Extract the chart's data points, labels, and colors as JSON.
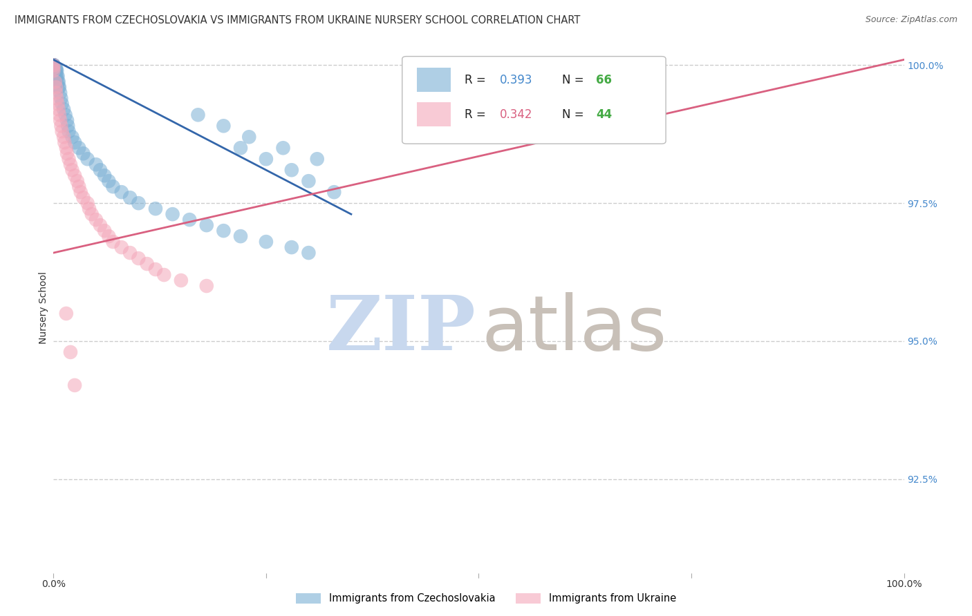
{
  "title": "IMMIGRANTS FROM CZECHOSLOVAKIA VS IMMIGRANTS FROM UKRAINE NURSERY SCHOOL CORRELATION CHART",
  "source": "Source: ZipAtlas.com",
  "ylabel": "Nursery School",
  "legend_label_blue": "Immigrants from Czechoslovakia",
  "legend_label_pink": "Immigrants from Ukraine",
  "blue_color": "#7BAFD4",
  "pink_color": "#F4A7B9",
  "blue_line_color": "#3366AA",
  "pink_line_color": "#D96080",
  "blue_r_text": "R = ",
  "blue_r_val": "0.393",
  "blue_n_text": "N = ",
  "blue_n_val": "66",
  "pink_r_text": "R = ",
  "pink_r_val": "0.342",
  "pink_n_text": "N = ",
  "pink_n_val": "44",
  "watermark_color_zip": "#C8D8EE",
  "watermark_color_atlas": "#C8C0B8",
  "grid_color": "#CCCCCC",
  "background_color": "#FFFFFF",
  "xlim": [
    0.0,
    1.0
  ],
  "ylim": [
    0.908,
    1.004
  ],
  "ytick_vals": [
    1.0,
    0.975,
    0.95,
    0.925
  ],
  "ytick_labels": [
    "100.0%",
    "97.5%",
    "95.0%",
    "92.5%"
  ],
  "blue_line_x0": 0.0,
  "blue_line_x1": 0.35,
  "blue_line_y0": 1.001,
  "blue_line_y1": 0.973,
  "pink_line_x0": 0.0,
  "pink_line_x1": 1.0,
  "pink_line_y0": 0.966,
  "pink_line_y1": 1.001,
  "blue_x": [
    0.0,
    0.0,
    0.0,
    0.0,
    0.0,
    0.0,
    0.0,
    0.0,
    0.0,
    0.0,
    0.0,
    0.0,
    0.0,
    0.0,
    0.0,
    0.003,
    0.003,
    0.003,
    0.003,
    0.004,
    0.004,
    0.005,
    0.005,
    0.006,
    0.006,
    0.007,
    0.008,
    0.009,
    0.01,
    0.012,
    0.014,
    0.016,
    0.017,
    0.018,
    0.022,
    0.025,
    0.03,
    0.035,
    0.04,
    0.05,
    0.055,
    0.06,
    0.065,
    0.07,
    0.08,
    0.09,
    0.1,
    0.12,
    0.14,
    0.16,
    0.18,
    0.2,
    0.22,
    0.25,
    0.28,
    0.3,
    0.22,
    0.25,
    0.28,
    0.3,
    0.33,
    0.17,
    0.2,
    0.23,
    0.27,
    0.31
  ],
  "blue_y": [
    1.0,
    1.0,
    1.0,
    1.0,
    1.0,
    1.0,
    1.0,
    1.0,
    1.0,
    1.0,
    1.0,
    1.0,
    1.0,
    1.0,
    1.0,
    0.9995,
    0.9992,
    0.999,
    0.998,
    0.999,
    0.998,
    0.998,
    0.997,
    0.997,
    0.996,
    0.996,
    0.995,
    0.994,
    0.993,
    0.992,
    0.991,
    0.99,
    0.989,
    0.988,
    0.987,
    0.986,
    0.985,
    0.984,
    0.983,
    0.982,
    0.981,
    0.98,
    0.979,
    0.978,
    0.977,
    0.976,
    0.975,
    0.974,
    0.973,
    0.972,
    0.971,
    0.97,
    0.969,
    0.968,
    0.967,
    0.966,
    0.985,
    0.983,
    0.981,
    0.979,
    0.977,
    0.991,
    0.989,
    0.987,
    0.985,
    0.983
  ],
  "pink_x": [
    0.0,
    0.0,
    0.0,
    0.002,
    0.003,
    0.003,
    0.004,
    0.005,
    0.006,
    0.007,
    0.008,
    0.009,
    0.01,
    0.012,
    0.013,
    0.015,
    0.016,
    0.018,
    0.02,
    0.022,
    0.025,
    0.028,
    0.03,
    0.032,
    0.035,
    0.04,
    0.042,
    0.045,
    0.05,
    0.055,
    0.06,
    0.065,
    0.07,
    0.08,
    0.09,
    0.1,
    0.11,
    0.12,
    0.13,
    0.15,
    0.18,
    0.02,
    0.025,
    0.015
  ],
  "pink_y": [
    1.0,
    0.9995,
    0.999,
    0.997,
    0.996,
    0.995,
    0.994,
    0.993,
    0.992,
    0.991,
    0.99,
    0.989,
    0.988,
    0.987,
    0.986,
    0.985,
    0.984,
    0.983,
    0.982,
    0.981,
    0.98,
    0.979,
    0.978,
    0.977,
    0.976,
    0.975,
    0.974,
    0.973,
    0.972,
    0.971,
    0.97,
    0.969,
    0.968,
    0.967,
    0.966,
    0.965,
    0.964,
    0.963,
    0.962,
    0.961,
    0.96,
    0.948,
    0.942,
    0.955
  ]
}
